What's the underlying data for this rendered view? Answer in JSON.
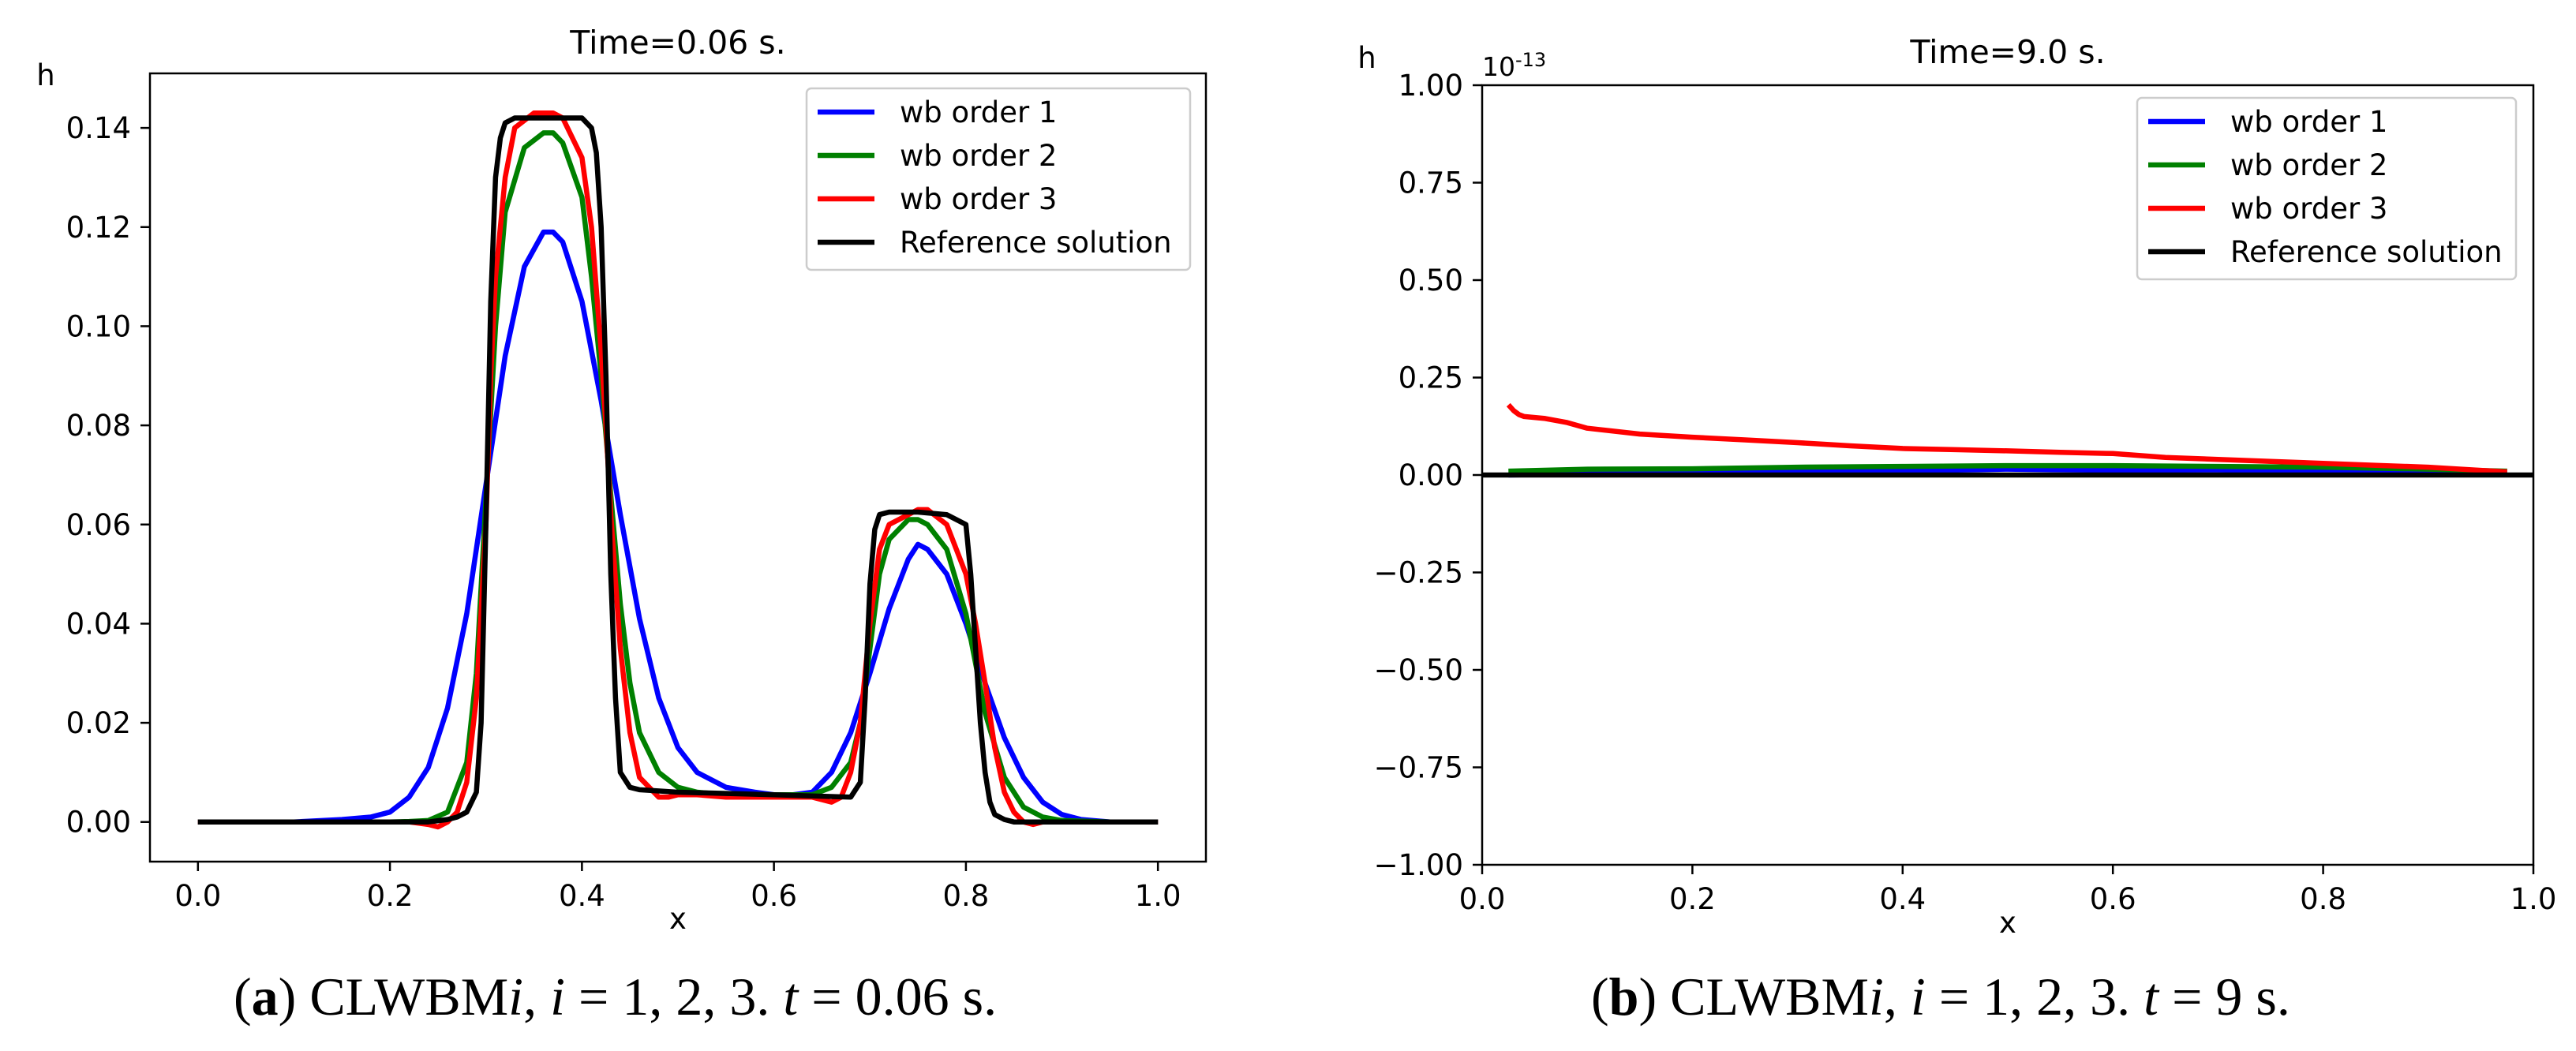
{
  "chart_data": [
    {
      "type": "line",
      "panel": "a",
      "title": "Time=0.06 s.",
      "xlabel": "x",
      "ylabel": "h",
      "xlim": [
        -0.05,
        1.05
      ],
      "ylim": [
        -0.008,
        0.151
      ],
      "xticks": [
        0.0,
        0.2,
        0.4,
        0.6,
        0.8,
        1.0
      ],
      "xtick_labels": [
        "0.0",
        "0.2",
        "0.4",
        "0.6",
        "0.8",
        "1.0"
      ],
      "yticks": [
        0.0,
        0.02,
        0.04,
        0.06,
        0.08,
        0.1,
        0.12,
        0.14
      ],
      "ytick_labels": [
        "0.00",
        "0.02",
        "0.04",
        "0.06",
        "0.08",
        "0.10",
        "0.12",
        "0.14"
      ],
      "legend_position": "top-right",
      "series": [
        {
          "name": "wb order 1",
          "color": "#0000ff",
          "x": [
            0.0,
            0.1,
            0.15,
            0.18,
            0.2,
            0.22,
            0.24,
            0.26,
            0.28,
            0.3,
            0.32,
            0.34,
            0.36,
            0.37,
            0.38,
            0.4,
            0.42,
            0.44,
            0.46,
            0.48,
            0.5,
            0.52,
            0.55,
            0.58,
            0.6,
            0.62,
            0.64,
            0.66,
            0.68,
            0.7,
            0.72,
            0.74,
            0.75,
            0.76,
            0.78,
            0.8,
            0.82,
            0.84,
            0.86,
            0.88,
            0.9,
            0.92,
            0.95,
            1.0
          ],
          "y": [
            0.0,
            0.0,
            0.0005,
            0.001,
            0.002,
            0.005,
            0.011,
            0.023,
            0.042,
            0.068,
            0.094,
            0.112,
            0.119,
            0.119,
            0.117,
            0.105,
            0.085,
            0.062,
            0.041,
            0.025,
            0.015,
            0.01,
            0.007,
            0.006,
            0.0055,
            0.0055,
            0.006,
            0.01,
            0.018,
            0.03,
            0.043,
            0.053,
            0.056,
            0.055,
            0.05,
            0.04,
            0.028,
            0.017,
            0.009,
            0.004,
            0.0015,
            0.0005,
            0.0,
            0.0
          ]
        },
        {
          "name": "wb order 2",
          "color": "#008000",
          "x": [
            0.0,
            0.2,
            0.22,
            0.24,
            0.26,
            0.28,
            0.29,
            0.3,
            0.31,
            0.32,
            0.34,
            0.36,
            0.37,
            0.38,
            0.4,
            0.41,
            0.42,
            0.43,
            0.44,
            0.45,
            0.46,
            0.48,
            0.5,
            0.52,
            0.55,
            0.6,
            0.64,
            0.66,
            0.68,
            0.69,
            0.7,
            0.71,
            0.72,
            0.74,
            0.75,
            0.76,
            0.78,
            0.8,
            0.81,
            0.82,
            0.84,
            0.86,
            0.88,
            0.9,
            0.95,
            1.0
          ],
          "y": [
            0.0,
            0.0,
            0.0001,
            0.0003,
            0.002,
            0.012,
            0.03,
            0.065,
            0.1,
            0.123,
            0.136,
            0.139,
            0.139,
            0.137,
            0.126,
            0.11,
            0.09,
            0.066,
            0.044,
            0.028,
            0.018,
            0.01,
            0.007,
            0.006,
            0.0055,
            0.0055,
            0.0055,
            0.007,
            0.012,
            0.02,
            0.035,
            0.05,
            0.057,
            0.061,
            0.061,
            0.06,
            0.055,
            0.042,
            0.032,
            0.022,
            0.009,
            0.003,
            0.001,
            0.0003,
            0.0,
            0.0
          ]
        },
        {
          "name": "wb order 3",
          "color": "#ff0000",
          "x": [
            0.0,
            0.22,
            0.24,
            0.25,
            0.26,
            0.27,
            0.28,
            0.29,
            0.3,
            0.305,
            0.31,
            0.32,
            0.33,
            0.35,
            0.37,
            0.38,
            0.4,
            0.41,
            0.42,
            0.425,
            0.43,
            0.44,
            0.45,
            0.46,
            0.48,
            0.49,
            0.5,
            0.52,
            0.55,
            0.6,
            0.64,
            0.66,
            0.67,
            0.68,
            0.69,
            0.7,
            0.71,
            0.72,
            0.74,
            0.75,
            0.76,
            0.78,
            0.8,
            0.81,
            0.82,
            0.83,
            0.84,
            0.85,
            0.86,
            0.87,
            0.88,
            0.9,
            0.95,
            1.0
          ],
          "y": [
            0.0,
            0.0,
            -0.0005,
            -0.001,
            0.0,
            0.002,
            0.008,
            0.025,
            0.06,
            0.09,
            0.11,
            0.13,
            0.14,
            0.143,
            0.143,
            0.142,
            0.134,
            0.12,
            0.095,
            0.08,
            0.062,
            0.035,
            0.018,
            0.009,
            0.005,
            0.005,
            0.0055,
            0.0055,
            0.005,
            0.005,
            0.005,
            0.004,
            0.005,
            0.01,
            0.02,
            0.04,
            0.055,
            0.06,
            0.062,
            0.063,
            0.063,
            0.06,
            0.05,
            0.04,
            0.028,
            0.015,
            0.006,
            0.002,
            0.0,
            -0.0005,
            0.0,
            0.0,
            0.0,
            0.0
          ]
        },
        {
          "name": "Reference solution",
          "color": "#000000",
          "x": [
            0.0,
            0.24,
            0.26,
            0.27,
            0.28,
            0.29,
            0.295,
            0.3,
            0.305,
            0.31,
            0.315,
            0.32,
            0.33,
            0.36,
            0.4,
            0.41,
            0.415,
            0.42,
            0.425,
            0.43,
            0.435,
            0.44,
            0.45,
            0.46,
            0.5,
            0.6,
            0.68,
            0.69,
            0.695,
            0.7,
            0.705,
            0.71,
            0.72,
            0.75,
            0.78,
            0.8,
            0.805,
            0.81,
            0.815,
            0.82,
            0.825,
            0.83,
            0.84,
            0.85,
            0.9,
            1.0
          ],
          "y": [
            0.0,
            0.0,
            0.0005,
            0.001,
            0.002,
            0.006,
            0.02,
            0.06,
            0.105,
            0.13,
            0.138,
            0.141,
            0.142,
            0.142,
            0.142,
            0.14,
            0.135,
            0.12,
            0.09,
            0.05,
            0.025,
            0.01,
            0.007,
            0.0065,
            0.006,
            0.0055,
            0.005,
            0.008,
            0.025,
            0.048,
            0.059,
            0.062,
            0.0625,
            0.0625,
            0.062,
            0.06,
            0.05,
            0.035,
            0.02,
            0.01,
            0.004,
            0.0015,
            0.0005,
            0.0,
            0.0,
            0.0
          ]
        }
      ]
    },
    {
      "type": "line",
      "panel": "b",
      "title": "Time=9.0 s.",
      "xlabel": "x",
      "ylabel": "h",
      "offset_text": "10",
      "offset_exponent": "-13",
      "xlim": [
        0.0,
        1.0
      ],
      "ylim": [
        -1.0,
        1.0
      ],
      "xticks": [
        0.0,
        0.2,
        0.4,
        0.6,
        0.8,
        1.0
      ],
      "xtick_labels": [
        "0.0",
        "0.2",
        "0.4",
        "0.6",
        "0.8",
        "1.0"
      ],
      "yticks": [
        -1.0,
        -0.75,
        -0.5,
        -0.25,
        0.0,
        0.25,
        0.5,
        0.75,
        1.0
      ],
      "ytick_labels": [
        "−1.00",
        "−0.75",
        "−0.50",
        "−0.25",
        "0.00",
        "0.25",
        "0.50",
        "0.75",
        "1.00"
      ],
      "legend_position": "top-right",
      "series": [
        {
          "name": "wb order 1",
          "color": "#0000ff",
          "x": [
            0.025,
            0.1,
            0.2,
            0.3,
            0.4,
            0.5,
            0.6,
            0.7,
            0.8,
            0.9,
            0.975
          ],
          "y": [
            0.0,
            0.003,
            0.005,
            0.008,
            0.01,
            0.015,
            0.012,
            0.013,
            0.01,
            0.008,
            0.005
          ]
        },
        {
          "name": "wb order 2",
          "color": "#008000",
          "x": [
            0.025,
            0.1,
            0.2,
            0.3,
            0.4,
            0.5,
            0.6,
            0.7,
            0.8,
            0.9,
            0.975
          ],
          "y": [
            0.01,
            0.015,
            0.016,
            0.02,
            0.022,
            0.024,
            0.024,
            0.022,
            0.02,
            0.015,
            0.01
          ]
        },
        {
          "name": "wb order 3",
          "color": "#ff0000",
          "x": [
            0.025,
            0.03,
            0.035,
            0.04,
            0.06,
            0.08,
            0.1,
            0.15,
            0.2,
            0.25,
            0.3,
            0.35,
            0.4,
            0.45,
            0.5,
            0.55,
            0.6,
            0.65,
            0.7,
            0.75,
            0.8,
            0.85,
            0.9,
            0.95,
            0.975
          ],
          "y": [
            0.18,
            0.165,
            0.155,
            0.15,
            0.145,
            0.135,
            0.12,
            0.105,
            0.097,
            0.09,
            0.083,
            0.075,
            0.068,
            0.065,
            0.062,
            0.058,
            0.055,
            0.045,
            0.04,
            0.035,
            0.03,
            0.025,
            0.02,
            0.012,
            0.008
          ]
        },
        {
          "name": "Reference solution",
          "color": "#000000",
          "x": [
            0.0,
            1.0
          ],
          "y": [
            0.0,
            0.0
          ]
        }
      ]
    }
  ],
  "captions": [
    {
      "label": "a",
      "text1": " CLWBM",
      "var1": "i",
      "text2": ", ",
      "var2": "i",
      "text3": " = 1, 2, 3. ",
      "var3": "t",
      "text4": " = 0.06 s."
    },
    {
      "label": "b",
      "text1": " CLWBM",
      "var1": "i",
      "text2": ", ",
      "var2": "i",
      "text3": " = 1, 2, 3. ",
      "var3": "t",
      "text4": " = 9 s."
    }
  ]
}
